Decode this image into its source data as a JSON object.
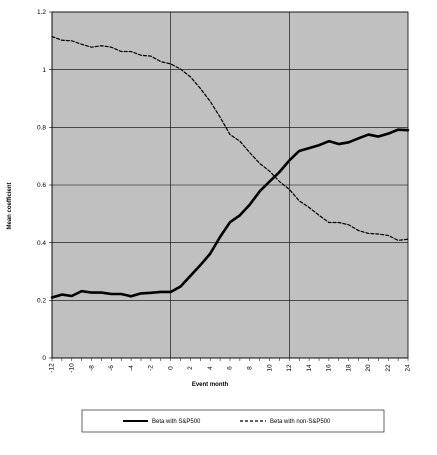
{
  "chart_data": {
    "type": "line",
    "xlabel": "Event month",
    "ylabel": "Mean coefficient",
    "xlim": [
      -12,
      24
    ],
    "ylim": [
      0,
      1.2
    ],
    "x_ticks": [
      -12,
      -10,
      -8,
      -6,
      -4,
      -2,
      0,
      2,
      4,
      6,
      8,
      10,
      12,
      14,
      16,
      18,
      20,
      22,
      24
    ],
    "y_ticks": [
      0,
      0.2,
      0.4,
      0.6,
      0.8,
      1,
      1.2
    ],
    "y_tick_labels": [
      "0",
      "0.2",
      "0.4",
      "0.6",
      "0.8",
      "1",
      "1.2"
    ],
    "gridlines": "horizontal",
    "vertical_reference_lines": [
      0,
      12
    ],
    "plot_background": "#c0c0c0",
    "legend_position": "bottom",
    "x": [
      -12,
      -11,
      -10,
      -9,
      -8,
      -7,
      -6,
      -5,
      -4,
      -3,
      -2,
      -1,
      0,
      1,
      2,
      3,
      4,
      5,
      6,
      7,
      8,
      9,
      10,
      11,
      12,
      13,
      14,
      15,
      16,
      17,
      18,
      19,
      20,
      21,
      22,
      23,
      24
    ],
    "series": [
      {
        "name": "Beta with S&P500",
        "style": "solid",
        "color": "#000000",
        "values": [
          0.21,
          0.22,
          0.215,
          0.232,
          0.227,
          0.227,
          0.222,
          0.222,
          0.214,
          0.224,
          0.226,
          0.229,
          0.229,
          0.248,
          0.285,
          0.322,
          0.362,
          0.42,
          0.471,
          0.495,
          0.532,
          0.578,
          0.612,
          0.645,
          0.685,
          0.718,
          0.728,
          0.738,
          0.752,
          0.742,
          0.748,
          0.762,
          0.775,
          0.768,
          0.778,
          0.792,
          0.79
        ]
      },
      {
        "name": "Beta with non-S&P500",
        "style": "dashed",
        "color": "#000000",
        "values": [
          1.115,
          1.102,
          1.1,
          1.088,
          1.078,
          1.083,
          1.078,
          1.063,
          1.063,
          1.05,
          1.047,
          1.028,
          1.02,
          1.002,
          0.975,
          0.935,
          0.89,
          0.835,
          0.775,
          0.752,
          0.712,
          0.675,
          0.648,
          0.612,
          0.585,
          0.545,
          0.522,
          0.495,
          0.47,
          0.47,
          0.462,
          0.442,
          0.432,
          0.43,
          0.425,
          0.408,
          0.412
        ]
      }
    ]
  }
}
